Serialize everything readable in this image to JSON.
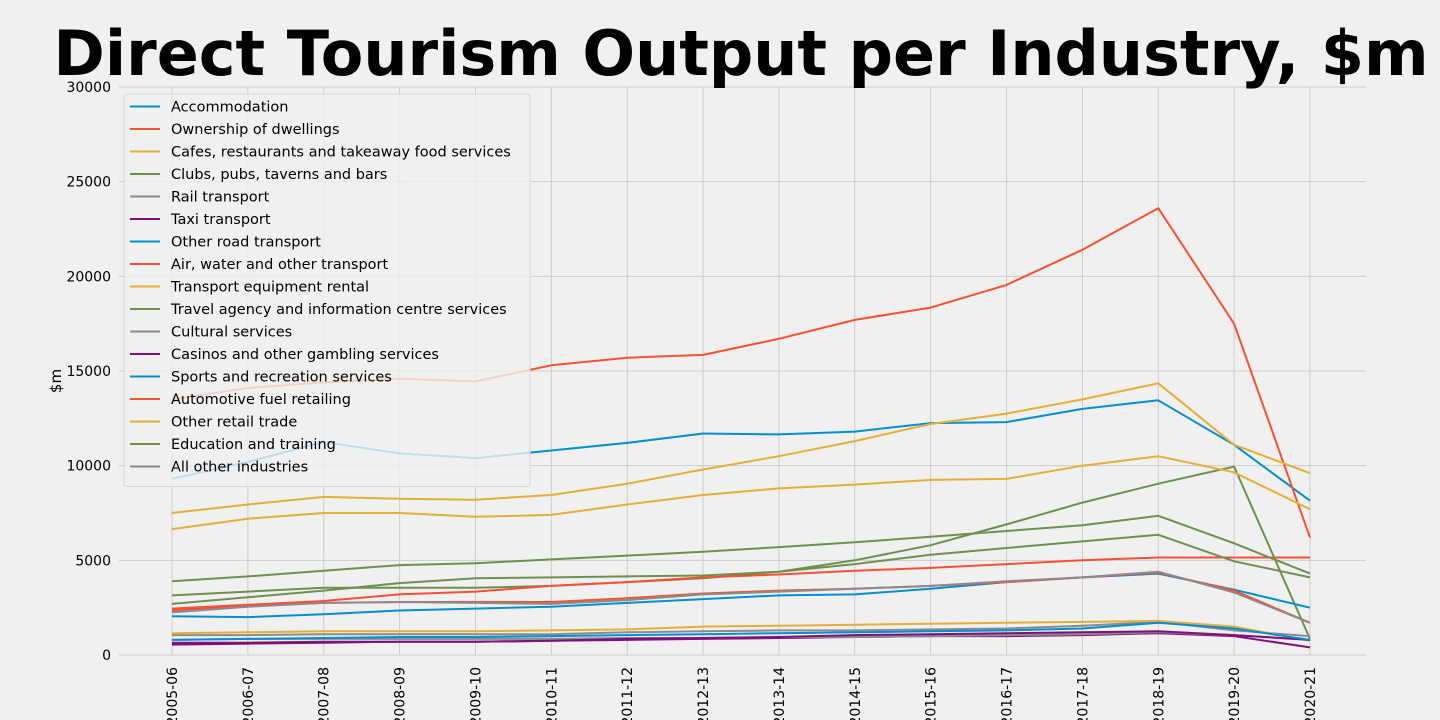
{
  "chart_data": {
    "type": "line",
    "title": "Direct Tourism Output per Industry, $m",
    "xlabel": "",
    "ylabel": "$m",
    "ylim": [
      0,
      30000
    ],
    "yticks": [
      0,
      5000,
      10000,
      15000,
      20000,
      25000,
      30000
    ],
    "grid": true,
    "legend_position": "top-left",
    "palette": [
      "#008fd5",
      "#fc4f30",
      "#e5ae38",
      "#6d904f",
      "#8b8b8b",
      "#810f7c"
    ],
    "categories": [
      "2005-06",
      "2006-07",
      "2007-08",
      "2008-09",
      "2009-10",
      "2010-11",
      "2011-12",
      "2012-13",
      "2013-14",
      "2014-15",
      "2015-16",
      "2016-17",
      "2017-18",
      "2018-19",
      "2019-20",
      "2020-21"
    ],
    "series": [
      {
        "name": "Accommodation",
        "values": [
          9300,
          10200,
          11250,
          10650,
          10400,
          10800,
          11200,
          11700,
          11650,
          11800,
          12250,
          12300,
          13000,
          13450,
          11100,
          8150
        ]
      },
      {
        "name": "Ownership of dwellings",
        "values": [
          13500,
          14100,
          14400,
          14600,
          14450,
          15300,
          15700,
          15850,
          16700,
          17700,
          18350,
          19550,
          21400,
          23600,
          17500,
          6200
        ]
      },
      {
        "name": "Cafes, restaurants and takeaway food services",
        "values": [
          7500,
          7950,
          8350,
          8250,
          8200,
          8450,
          9050,
          9800,
          10500,
          11300,
          12200,
          12750,
          13500,
          14350,
          11100,
          9600
        ]
      },
      {
        "name": "Clubs, pubs, taverns and bars",
        "values": [
          3150,
          3350,
          3550,
          3550,
          3550,
          3650,
          3850,
          4050,
          4400,
          5000,
          5800,
          6900,
          8050,
          9050,
          9950,
          850
        ]
      },
      {
        "name": "Rail transport",
        "values": [
          1050,
          1050,
          1100,
          1100,
          1100,
          1100,
          1200,
          1250,
          1300,
          1300,
          1350,
          1400,
          1550,
          1750,
          1300,
          1000
        ]
      },
      {
        "name": "Taxi transport",
        "values": [
          650,
          650,
          700,
          700,
          700,
          750,
          800,
          850,
          900,
          950,
          1000,
          1000,
          1050,
          1150,
          1000,
          400
        ]
      },
      {
        "name": "Other road transport",
        "values": [
          2050,
          2000,
          2150,
          2350,
          2450,
          2550,
          2750,
          2950,
          3150,
          3200,
          3500,
          3850,
          4100,
          4300,
          3450,
          2500
        ]
      },
      {
        "name": "Air, water and other transport",
        "values": [
          2450,
          2650,
          2850,
          3200,
          3350,
          3650,
          3850,
          4100,
          4250,
          4450,
          4600,
          4800,
          5000,
          5150,
          5150,
          5150
        ]
      },
      {
        "name": "Transport equipment rental",
        "values": [
          1150,
          1200,
          1250,
          1250,
          1250,
          1300,
          1350,
          1500,
          1550,
          1600,
          1650,
          1700,
          1750,
          1800,
          1500,
          750
        ]
      },
      {
        "name": "Travel agency and information centre services",
        "values": [
          2700,
          3050,
          3400,
          3800,
          4050,
          4100,
          4150,
          4200,
          4400,
          4800,
          5300,
          5650,
          6000,
          6350,
          4950,
          4100
        ]
      },
      {
        "name": "Cultural services",
        "values": [
          800,
          850,
          850,
          850,
          850,
          850,
          900,
          900,
          950,
          950,
          1000,
          1050,
          1100,
          1200,
          1050,
          800
        ]
      },
      {
        "name": "Casinos and other gambling services",
        "values": [
          550,
          600,
          650,
          700,
          700,
          750,
          850,
          900,
          950,
          1050,
          1100,
          1150,
          1200,
          1250,
          1050,
          800
        ]
      },
      {
        "name": "Sports and recreation services",
        "values": [
          800,
          850,
          900,
          950,
          950,
          1000,
          1050,
          1100,
          1150,
          1200,
          1250,
          1300,
          1400,
          1700,
          1400,
          800
        ]
      },
      {
        "name": "Automotive fuel retailing",
        "values": [
          2350,
          2600,
          2750,
          2800,
          2800,
          2800,
          3000,
          3250,
          3400,
          3500,
          3650,
          3850,
          4100,
          4350,
          3400,
          1700
        ]
      },
      {
        "name": "Other retail trade",
        "values": [
          6650,
          7200,
          7500,
          7500,
          7300,
          7400,
          7950,
          8450,
          8800,
          9000,
          9250,
          9300,
          10000,
          10500,
          9650,
          7700
        ]
      },
      {
        "name": "Education and training",
        "values": [
          3900,
          4150,
          4450,
          4750,
          4850,
          5050,
          5250,
          5450,
          5700,
          5950,
          6250,
          6550,
          6850,
          7350,
          5900,
          4300
        ]
      },
      {
        "name": "All other industries",
        "values": [
          2250,
          2550,
          2750,
          2800,
          2750,
          2700,
          2900,
          3200,
          3350,
          3500,
          3650,
          3900,
          4100,
          4400,
          3300,
          1700
        ]
      }
    ]
  }
}
